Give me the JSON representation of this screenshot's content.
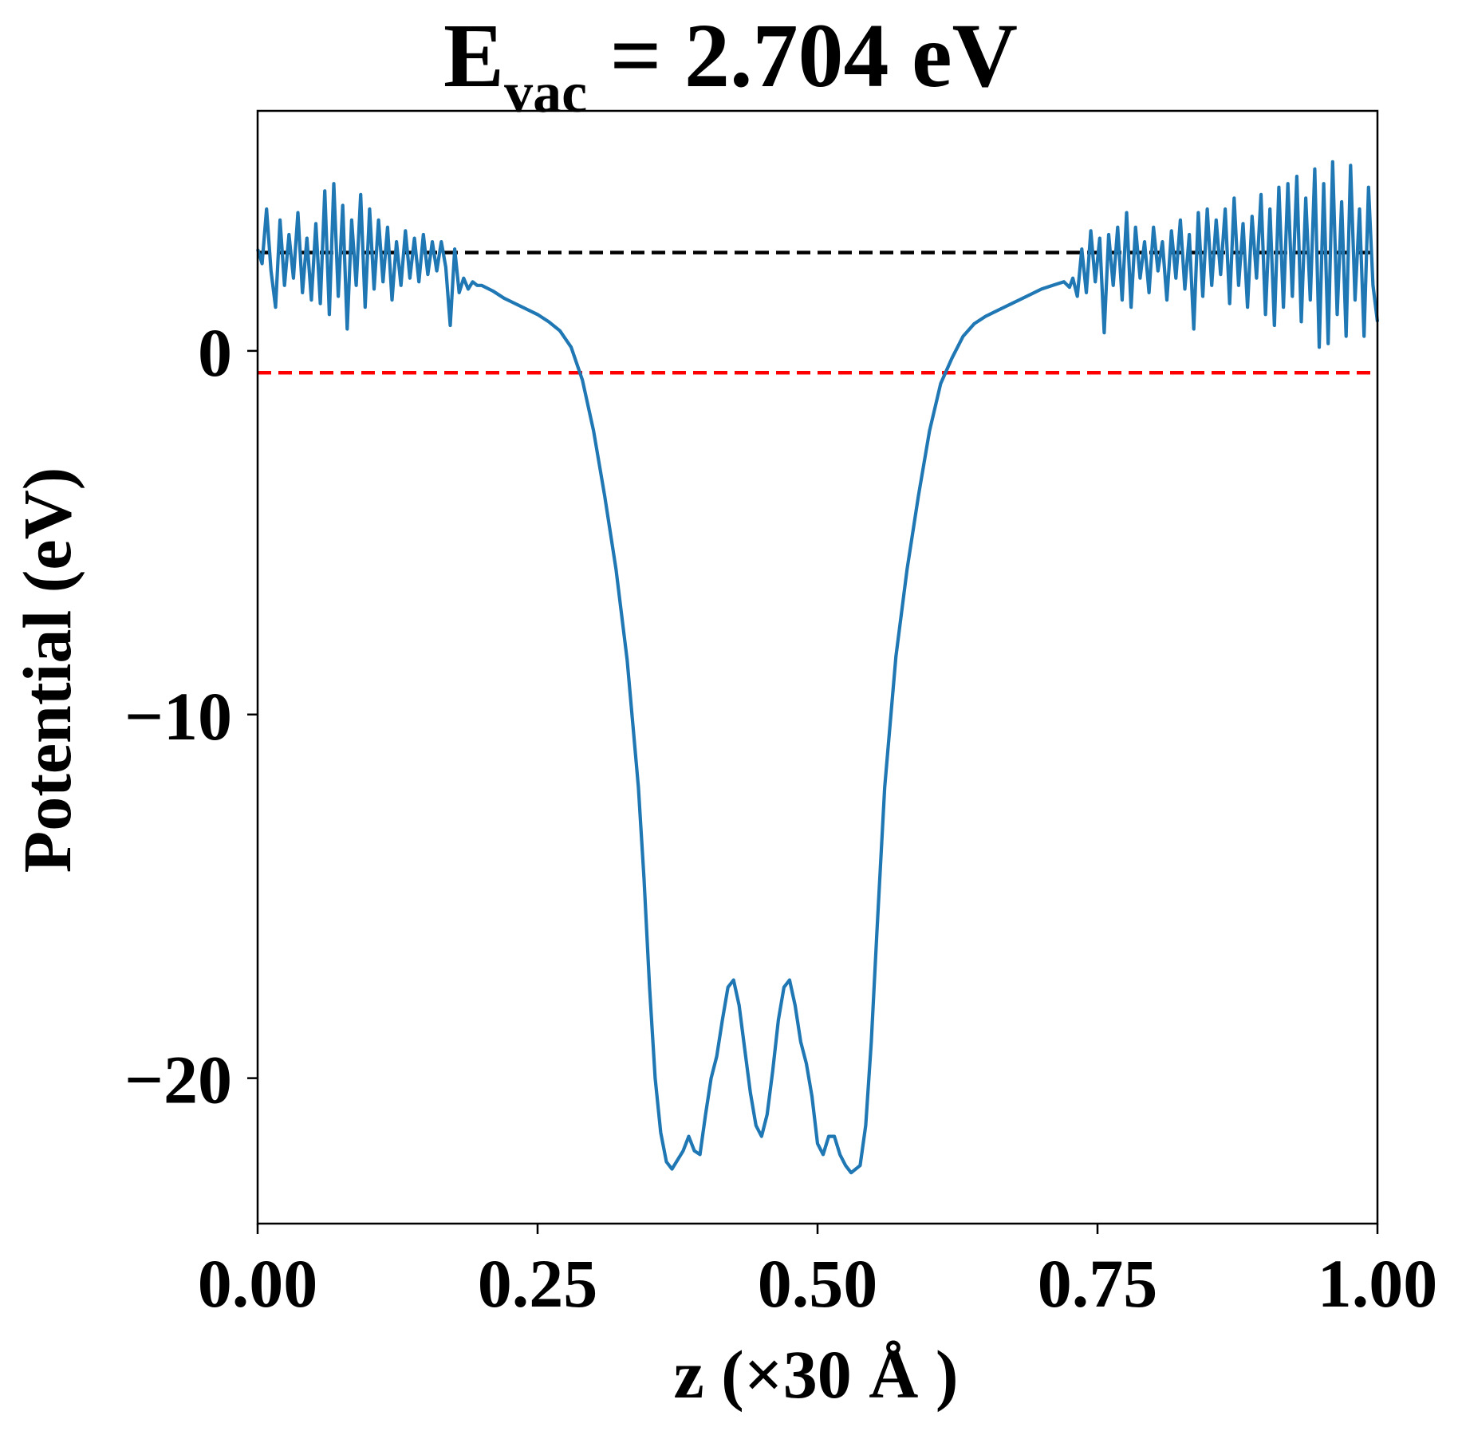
{
  "chart_data": {
    "type": "line",
    "title": {
      "main": "E",
      "subscript": "vac",
      "rest": " = 2.704 eV"
    },
    "xlabel": "z (×30 Å )",
    "ylabel": "Potential (eV)",
    "xlim": [
      0.0,
      1.0
    ],
    "ylim": [
      -24.0,
      6.6
    ],
    "xticks": [
      0.0,
      0.25,
      0.5,
      0.75,
      1.0
    ],
    "xtick_labels": [
      "0.00",
      "0.25",
      "0.50",
      "0.75",
      "1.00"
    ],
    "yticks": [
      0,
      -10,
      -20
    ],
    "ytick_labels": [
      "0",
      "−10",
      "−20"
    ],
    "grid": false,
    "reference_lines": [
      {
        "name": "vacuum-level",
        "y": 2.704,
        "color": "#000000",
        "style": "dashed"
      },
      {
        "name": "fermi-level",
        "y": -0.6,
        "color": "#ff0000",
        "style": "dashed"
      }
    ],
    "series": [
      {
        "color": "#1f77b4",
        "points": [
          [
            0.0,
            2.8
          ],
          [
            0.004,
            2.4
          ],
          [
            0.008,
            3.9
          ],
          [
            0.012,
            2.2
          ],
          [
            0.016,
            1.2
          ],
          [
            0.02,
            3.6
          ],
          [
            0.024,
            1.8
          ],
          [
            0.028,
            3.2
          ],
          [
            0.032,
            2.0
          ],
          [
            0.036,
            3.8
          ],
          [
            0.04,
            1.6
          ],
          [
            0.044,
            3.1
          ],
          [
            0.048,
            1.4
          ],
          [
            0.052,
            3.5
          ],
          [
            0.056,
            1.3
          ],
          [
            0.06,
            4.4
          ],
          [
            0.064,
            1.0
          ],
          [
            0.068,
            4.6
          ],
          [
            0.072,
            1.5
          ],
          [
            0.076,
            4.0
          ],
          [
            0.08,
            0.6
          ],
          [
            0.084,
            3.6
          ],
          [
            0.088,
            1.8
          ],
          [
            0.092,
            4.3
          ],
          [
            0.096,
            1.2
          ],
          [
            0.1,
            3.9
          ],
          [
            0.104,
            1.7
          ],
          [
            0.108,
            3.6
          ],
          [
            0.112,
            1.9
          ],
          [
            0.116,
            3.4
          ],
          [
            0.12,
            1.4
          ],
          [
            0.124,
            3.0
          ],
          [
            0.128,
            1.8
          ],
          [
            0.132,
            3.3
          ],
          [
            0.136,
            2.0
          ],
          [
            0.14,
            3.1
          ],
          [
            0.144,
            1.9
          ],
          [
            0.148,
            3.2
          ],
          [
            0.152,
            2.1
          ],
          [
            0.156,
            3.0
          ],
          [
            0.16,
            2.2
          ],
          [
            0.164,
            3.0
          ],
          [
            0.168,
            2.3
          ],
          [
            0.172,
            0.7
          ],
          [
            0.176,
            2.8
          ],
          [
            0.18,
            1.6
          ],
          [
            0.184,
            2.0
          ],
          [
            0.188,
            1.7
          ],
          [
            0.192,
            1.9
          ],
          [
            0.196,
            1.8
          ],
          [
            0.2,
            1.8
          ],
          [
            0.21,
            1.65
          ],
          [
            0.22,
            1.45
          ],
          [
            0.23,
            1.3
          ],
          [
            0.24,
            1.15
          ],
          [
            0.25,
            1.0
          ],
          [
            0.26,
            0.8
          ],
          [
            0.27,
            0.55
          ],
          [
            0.28,
            0.1
          ],
          [
            0.29,
            -0.8
          ],
          [
            0.3,
            -2.2
          ],
          [
            0.31,
            -4.0
          ],
          [
            0.32,
            -6.0
          ],
          [
            0.33,
            -8.5
          ],
          [
            0.34,
            -12.0
          ],
          [
            0.345,
            -14.5
          ],
          [
            0.35,
            -17.5
          ],
          [
            0.355,
            -20.0
          ],
          [
            0.36,
            -21.5
          ],
          [
            0.365,
            -22.3
          ],
          [
            0.37,
            -22.5
          ],
          [
            0.38,
            -22.0
          ],
          [
            0.385,
            -21.6
          ],
          [
            0.39,
            -22.0
          ],
          [
            0.395,
            -22.1
          ],
          [
            0.4,
            -21.0
          ],
          [
            0.405,
            -20.0
          ],
          [
            0.41,
            -19.4
          ],
          [
            0.415,
            -18.4
          ],
          [
            0.42,
            -17.5
          ],
          [
            0.425,
            -17.3
          ],
          [
            0.43,
            -18.0
          ],
          [
            0.435,
            -19.2
          ],
          [
            0.44,
            -20.4
          ],
          [
            0.445,
            -21.3
          ],
          [
            0.45,
            -21.6
          ],
          [
            0.455,
            -21.0
          ],
          [
            0.46,
            -19.8
          ],
          [
            0.465,
            -18.4
          ],
          [
            0.47,
            -17.5
          ],
          [
            0.475,
            -17.3
          ],
          [
            0.48,
            -18.0
          ],
          [
            0.485,
            -19.0
          ],
          [
            0.49,
            -19.6
          ],
          [
            0.495,
            -20.5
          ],
          [
            0.5,
            -21.8
          ],
          [
            0.505,
            -22.1
          ],
          [
            0.51,
            -21.6
          ],
          [
            0.515,
            -21.6
          ],
          [
            0.52,
            -22.1
          ],
          [
            0.525,
            -22.4
          ],
          [
            0.53,
            -22.6
          ],
          [
            0.538,
            -22.4
          ],
          [
            0.543,
            -21.3
          ],
          [
            0.548,
            -19.0
          ],
          [
            0.553,
            -16.0
          ],
          [
            0.56,
            -12.0
          ],
          [
            0.57,
            -8.4
          ],
          [
            0.58,
            -6.0
          ],
          [
            0.59,
            -4.0
          ],
          [
            0.6,
            -2.2
          ],
          [
            0.61,
            -0.9
          ],
          [
            0.62,
            -0.2
          ],
          [
            0.63,
            0.4
          ],
          [
            0.64,
            0.75
          ],
          [
            0.65,
            0.95
          ],
          [
            0.66,
            1.1
          ],
          [
            0.67,
            1.25
          ],
          [
            0.68,
            1.4
          ],
          [
            0.69,
            1.55
          ],
          [
            0.7,
            1.7
          ],
          [
            0.71,
            1.8
          ],
          [
            0.72,
            1.9
          ],
          [
            0.725,
            1.75
          ],
          [
            0.728,
            2.0
          ],
          [
            0.732,
            1.5
          ],
          [
            0.736,
            2.8
          ],
          [
            0.74,
            1.6
          ],
          [
            0.744,
            3.3
          ],
          [
            0.748,
            1.9
          ],
          [
            0.752,
            3.1
          ],
          [
            0.756,
            0.5
          ],
          [
            0.76,
            3.2
          ],
          [
            0.764,
            1.8
          ],
          [
            0.768,
            3.4
          ],
          [
            0.772,
            1.4
          ],
          [
            0.776,
            3.8
          ],
          [
            0.78,
            1.2
          ],
          [
            0.784,
            3.4
          ],
          [
            0.788,
            2.0
          ],
          [
            0.792,
            3.0
          ],
          [
            0.796,
            1.6
          ],
          [
            0.8,
            3.4
          ],
          [
            0.804,
            2.2
          ],
          [
            0.808,
            3.0
          ],
          [
            0.812,
            1.4
          ],
          [
            0.816,
            3.3
          ],
          [
            0.82,
            2.0
          ],
          [
            0.824,
            3.6
          ],
          [
            0.828,
            1.7
          ],
          [
            0.832,
            3.2
          ],
          [
            0.836,
            0.6
          ],
          [
            0.84,
            3.8
          ],
          [
            0.844,
            1.5
          ],
          [
            0.848,
            3.9
          ],
          [
            0.852,
            1.8
          ],
          [
            0.856,
            3.6
          ],
          [
            0.86,
            2.1
          ],
          [
            0.864,
            3.9
          ],
          [
            0.868,
            1.3
          ],
          [
            0.872,
            4.2
          ],
          [
            0.876,
            1.8
          ],
          [
            0.88,
            3.5
          ],
          [
            0.884,
            1.2
          ],
          [
            0.888,
            3.7
          ],
          [
            0.892,
            2.0
          ],
          [
            0.896,
            4.3
          ],
          [
            0.9,
            1.0
          ],
          [
            0.904,
            3.9
          ],
          [
            0.908,
            0.7
          ],
          [
            0.912,
            4.5
          ],
          [
            0.916,
            1.2
          ],
          [
            0.92,
            4.6
          ],
          [
            0.924,
            1.5
          ],
          [
            0.928,
            4.8
          ],
          [
            0.932,
            0.8
          ],
          [
            0.936,
            4.2
          ],
          [
            0.94,
            1.4
          ],
          [
            0.944,
            5.0
          ],
          [
            0.948,
            0.1
          ],
          [
            0.952,
            4.6
          ],
          [
            0.956,
            0.2
          ],
          [
            0.96,
            5.2
          ],
          [
            0.964,
            1.0
          ],
          [
            0.968,
            4.1
          ],
          [
            0.972,
            0.4
          ],
          [
            0.976,
            5.1
          ],
          [
            0.98,
            1.4
          ],
          [
            0.984,
            3.9
          ],
          [
            0.988,
            0.4
          ],
          [
            0.992,
            4.5
          ],
          [
            0.996,
            1.8
          ],
          [
            1.0,
            0.8
          ]
        ]
      }
    ]
  }
}
